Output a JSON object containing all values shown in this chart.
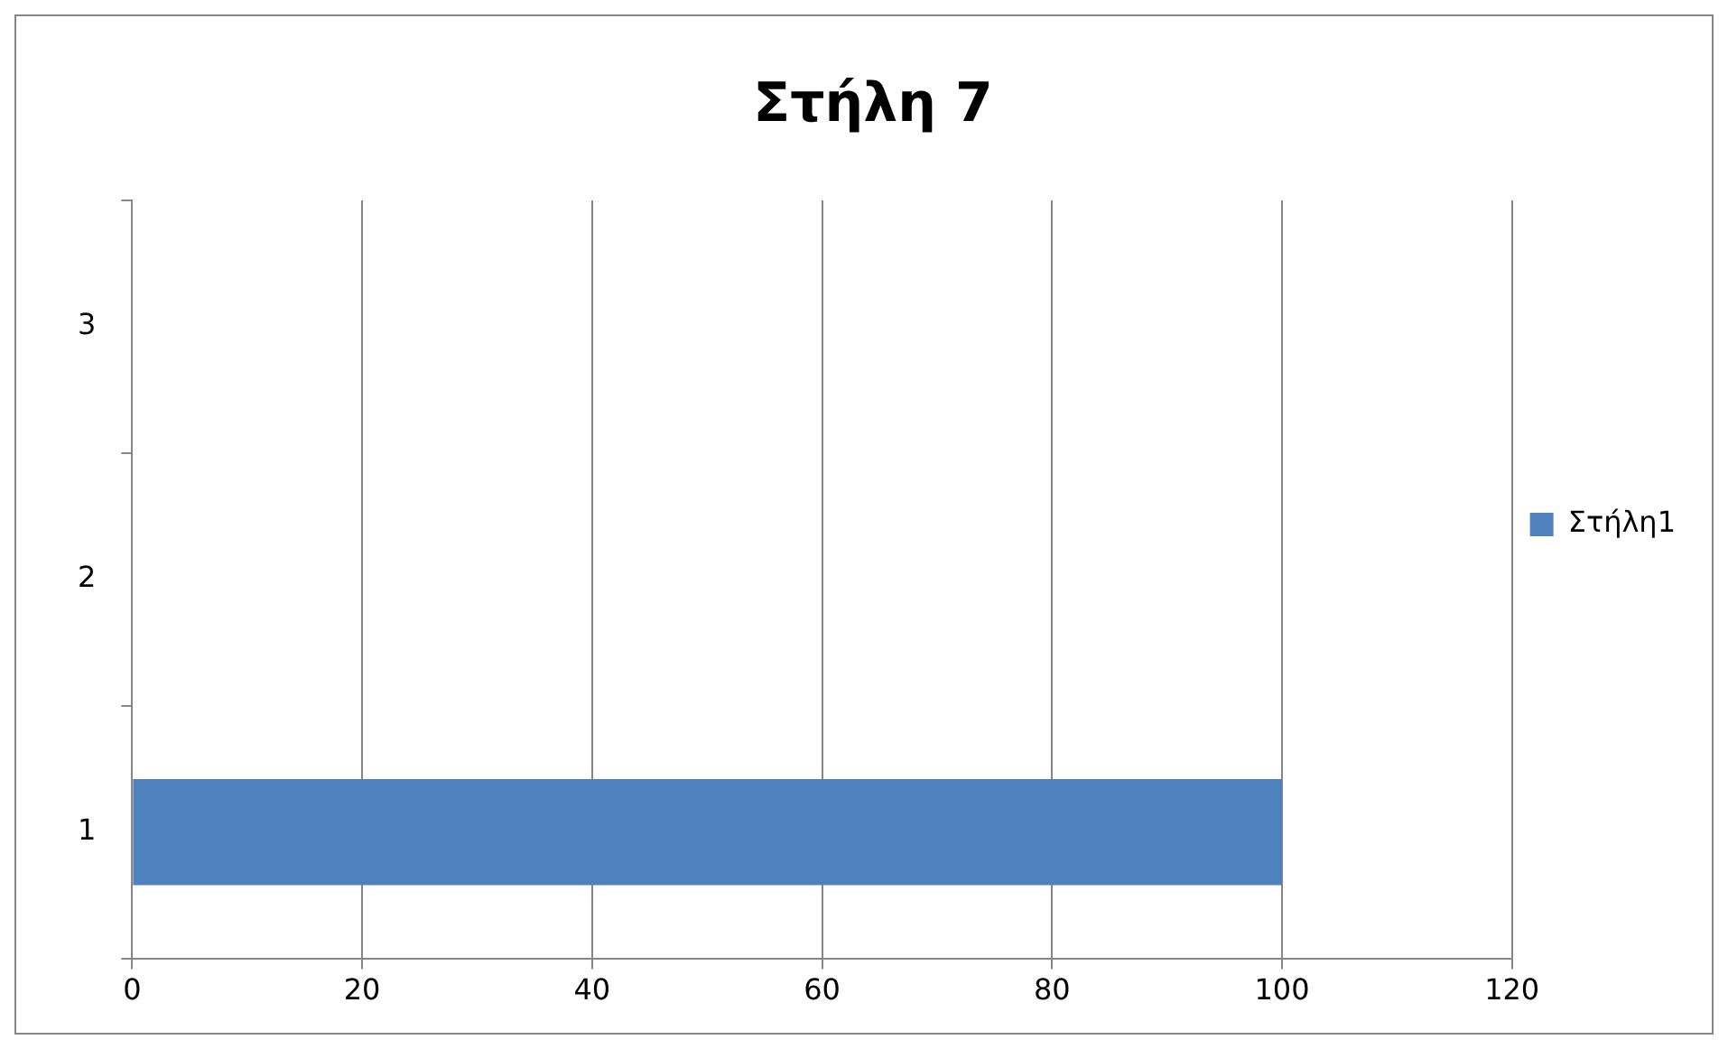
{
  "chart_data": {
    "type": "bar",
    "orientation": "horizontal",
    "title": "Στήλη 7",
    "categories": [
      "3",
      "2",
      "1"
    ],
    "series": [
      {
        "name": "Στήλη1",
        "color": "#4f81bd",
        "values": [
          0,
          0,
          100
        ]
      }
    ],
    "xlim": [
      0,
      120
    ],
    "xticks": [
      0,
      20,
      40,
      60,
      80,
      100,
      120
    ],
    "grid": "x",
    "legend": "right"
  }
}
